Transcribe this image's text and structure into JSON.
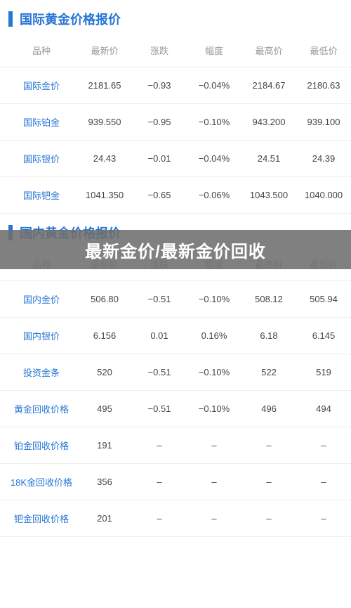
{
  "colors": {
    "accent": "#2776d5",
    "header_text": "#999999",
    "cell_text": "#444444",
    "border": "#eeeeee",
    "overlay_bg": "rgba(110,110,110,0.88)",
    "overlay_text": "#ffffff"
  },
  "intl": {
    "title": "国际黄金价格报价",
    "columns": [
      "品种",
      "最新价",
      "涨跌",
      "幅度",
      "最高价",
      "最低价"
    ],
    "rows": [
      {
        "name": "国际金价",
        "latest": "2181.65",
        "change": "−0.93",
        "pct": "−0.04%",
        "high": "2184.67",
        "low": "2180.63"
      },
      {
        "name": "国际铂金",
        "latest": "939.550",
        "change": "−0.95",
        "pct": "−0.10%",
        "high": "943.200",
        "low": "939.100"
      },
      {
        "name": "国际银价",
        "latest": "24.43",
        "change": "−0.01",
        "pct": "−0.04%",
        "high": "24.51",
        "low": "24.39"
      },
      {
        "name": "国际钯金",
        "latest": "1041.350",
        "change": "−0.65",
        "pct": "−0.06%",
        "high": "1043.500",
        "low": "1040.000"
      }
    ]
  },
  "dom": {
    "title": "国内黄金价格报价",
    "columns": [
      "品种",
      "最新价",
      "涨跌",
      "幅度",
      "最高价",
      "最低价"
    ],
    "rows": [
      {
        "name": "国内金价",
        "latest": "506.80",
        "change": "−0.51",
        "pct": "−0.10%",
        "high": "508.12",
        "low": "505.94"
      },
      {
        "name": "国内银价",
        "latest": "6.156",
        "change": "0.01",
        "pct": "0.16%",
        "high": "6.18",
        "low": "6.145"
      },
      {
        "name": "投资金条",
        "latest": "520",
        "change": "−0.51",
        "pct": "−0.10%",
        "high": "522",
        "low": "519"
      },
      {
        "name": "黄金回收价格",
        "latest": "495",
        "change": "−0.51",
        "pct": "−0.10%",
        "high": "496",
        "low": "494"
      },
      {
        "name": "铂金回收价格",
        "latest": "191",
        "change": "–",
        "pct": "–",
        "high": "–",
        "low": "–"
      },
      {
        "name": "18K金回收价格",
        "latest": "356",
        "change": "–",
        "pct": "–",
        "high": "–",
        "low": "–"
      },
      {
        "name": "钯金回收价格",
        "latest": "201",
        "change": "–",
        "pct": "–",
        "high": "–",
        "low": "–"
      }
    ]
  },
  "overlay": {
    "text": "最新金价/最新金价回收"
  }
}
